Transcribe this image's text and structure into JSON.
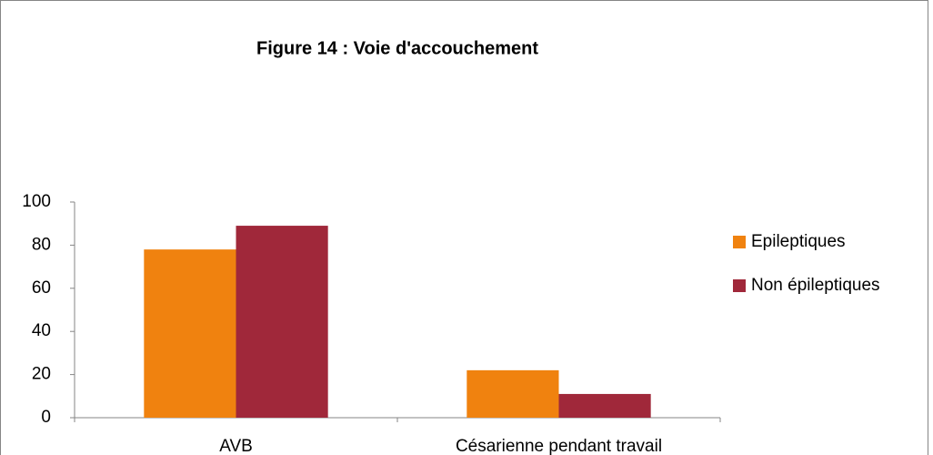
{
  "chart_data": {
    "type": "bar",
    "title": "Figure 14 : Voie d'accouchement",
    "categories": [
      "AVB",
      "Césarienne pendant travail"
    ],
    "series": [
      {
        "name": "Epileptiques",
        "color": "#f0820f",
        "values": [
          78,
          22
        ]
      },
      {
        "name": "Non épileptiques",
        "color": "#a0283a",
        "values": [
          89,
          11
        ]
      }
    ],
    "ylim": [
      0,
      100
    ],
    "yticks": [
      0,
      20,
      40,
      60,
      80,
      100
    ],
    "grid": false,
    "legend": "right"
  }
}
